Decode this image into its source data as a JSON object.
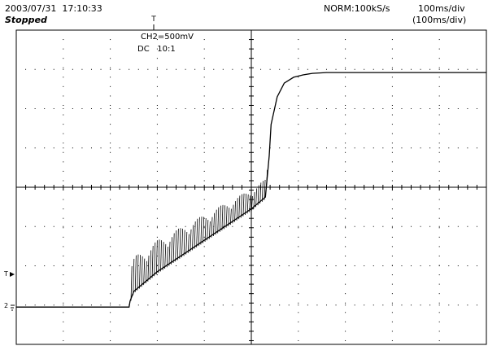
{
  "header": {
    "timestamp": "2003/07/31  17:10:33",
    "status": "Stopped",
    "mode": "NORM:100kS/s",
    "timebase": "100ms/div",
    "timebase_secondary": "(100ms/div)"
  },
  "channel": {
    "scale": "CH2=500mV",
    "coupling": "DC   10:1"
  },
  "markers": {
    "trigger_pos_label": "T",
    "trigger_level_label": "T",
    "channel_ground_label": "2"
  },
  "colors": {
    "background": "#ffffff",
    "grid": "#000000",
    "trace": "#000000"
  },
  "icons": {
    "trigger_position": "trigger-position-marker-icon",
    "trigger_level": "trigger-level-arrow-icon",
    "ground": "channel-ground-marker-icon"
  },
  "chart_data": {
    "type": "line",
    "title": "",
    "xlabel": "",
    "ylabel": "",
    "x_unit": "div",
    "y_unit": "div",
    "xlim": [
      -5,
      5
    ],
    "ylim": [
      -4,
      4
    ],
    "grid": true,
    "grid_divisions": {
      "x": 10,
      "y": 8
    },
    "series": [
      {
        "x": [
          -5.0,
          -2.6,
          -2.58,
          -2.5,
          -2.0,
          -1.5,
          -1.0,
          -0.5,
          0.0,
          0.3,
          0.38,
          0.42,
          0.55,
          0.7,
          0.9,
          1.1,
          1.3,
          1.6,
          2.0,
          3.0,
          4.0,
          5.0
        ],
        "y": [
          -3.05,
          -3.05,
          -2.9,
          -2.65,
          -2.15,
          -1.75,
          -1.35,
          -0.95,
          -0.55,
          -0.25,
          0.8,
          1.6,
          2.3,
          2.65,
          2.8,
          2.86,
          2.9,
          2.92,
          2.92,
          2.92,
          2.92,
          2.92
        ]
      }
    ]
  }
}
